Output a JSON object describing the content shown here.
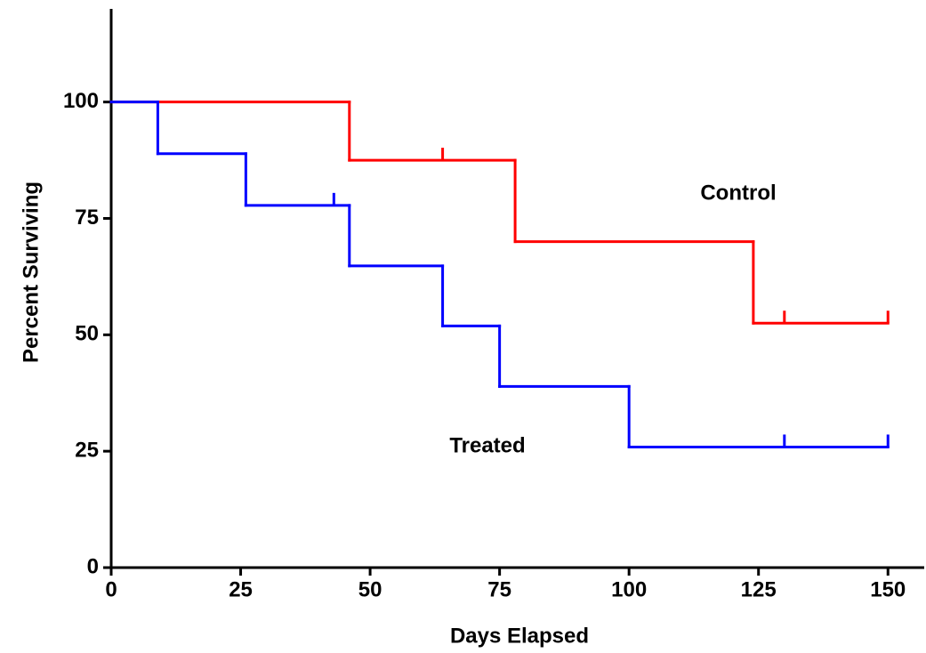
{
  "chart_data": {
    "type": "step",
    "x_label": "Days Elapsed",
    "y_label": "Percent Surviving",
    "xlim": [
      0,
      157
    ],
    "xticks": [
      0,
      25,
      50,
      75,
      100,
      125,
      150
    ],
    "ylim": [
      0,
      120
    ],
    "yticks": [
      0,
      25,
      50,
      75,
      100
    ],
    "series": [
      {
        "name": "Control",
        "color": "#ff0000",
        "x": [
          0,
          46,
          78,
          124,
          150
        ],
        "values": [
          100,
          87.5,
          70,
          52.5,
          52.5
        ],
        "censor_x": [
          64,
          130,
          150
        ],
        "censor_values": [
          87.5,
          52.5,
          52.5
        ]
      },
      {
        "name": "Treated",
        "color": "#0000ff",
        "x": [
          0,
          9,
          26,
          46,
          64,
          75,
          100,
          150
        ],
        "values": [
          100,
          88.9,
          77.8,
          64.8,
          51.9,
          38.9,
          25.9,
          25.9
        ],
        "censor_x": [
          43,
          130,
          150
        ],
        "censor_values": [
          77.8,
          25.9,
          25.9
        ]
      }
    ]
  }
}
